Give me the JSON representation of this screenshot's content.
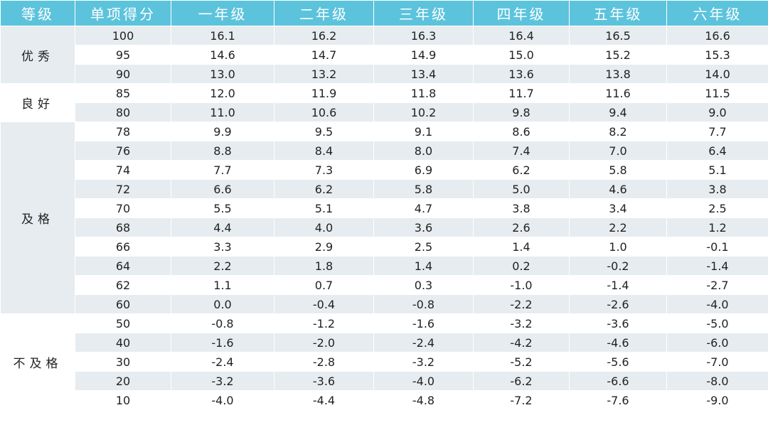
{
  "table": {
    "header": [
      "等级",
      "单项得分",
      "一年级",
      "二年级",
      "三年级",
      "四年级",
      "五年级",
      "六年级"
    ],
    "groups": [
      {
        "label": "优秀",
        "rows": [
          [
            "100",
            "16.1",
            "16.2",
            "16.3",
            "16.4",
            "16.5",
            "16.6"
          ],
          [
            "95",
            "14.6",
            "14.7",
            "14.9",
            "15.0",
            "15.2",
            "15.3"
          ],
          [
            "90",
            "13.0",
            "13.2",
            "13.4",
            "13.6",
            "13.8",
            "14.0"
          ]
        ]
      },
      {
        "label": "良好",
        "rows": [
          [
            "85",
            "12.0",
            "11.9",
            "11.8",
            "11.7",
            "11.6",
            "11.5"
          ],
          [
            "80",
            "11.0",
            "10.6",
            "10.2",
            "9.8",
            "9.4",
            "9.0"
          ]
        ]
      },
      {
        "label": "及格",
        "rows": [
          [
            "78",
            "9.9",
            "9.5",
            "9.1",
            "8.6",
            "8.2",
            "7.7"
          ],
          [
            "76",
            "8.8",
            "8.4",
            "8.0",
            "7.4",
            "7.0",
            "6.4"
          ],
          [
            "74",
            "7.7",
            "7.3",
            "6.9",
            "6.2",
            "5.8",
            "5.1"
          ],
          [
            "72",
            "6.6",
            "6.2",
            "5.8",
            "5.0",
            "4.6",
            "3.8"
          ],
          [
            "70",
            "5.5",
            "5.1",
            "4.7",
            "3.8",
            "3.4",
            "2.5"
          ],
          [
            "68",
            "4.4",
            "4.0",
            "3.6",
            "2.6",
            "2.2",
            "1.2"
          ],
          [
            "66",
            "3.3",
            "2.9",
            "2.5",
            "1.4",
            "1.0",
            "-0.1"
          ],
          [
            "64",
            "2.2",
            "1.8",
            "1.4",
            "0.2",
            "-0.2",
            "-1.4"
          ],
          [
            "62",
            "1.1",
            "0.7",
            "0.3",
            "-1.0",
            "-1.4",
            "-2.7"
          ],
          [
            "60",
            "0.0",
            "-0.4",
            "-0.8",
            "-2.2",
            "-2.6",
            "-4.0"
          ]
        ]
      },
      {
        "label": "不及格",
        "rows": [
          [
            "50",
            "-0.8",
            "-1.2",
            "-1.6",
            "-3.2",
            "-3.6",
            "-5.0"
          ],
          [
            "40",
            "-1.6",
            "-2.0",
            "-2.4",
            "-4.2",
            "-4.6",
            "-6.0"
          ],
          [
            "30",
            "-2.4",
            "-2.8",
            "-3.2",
            "-5.2",
            "-5.6",
            "-7.0"
          ],
          [
            "20",
            "-3.2",
            "-3.6",
            "-4.0",
            "-6.2",
            "-6.6",
            "-8.0"
          ],
          [
            "10",
            "-4.0",
            "-4.4",
            "-4.8",
            "-7.2",
            "-7.6",
            "-9.0"
          ]
        ]
      }
    ]
  }
}
